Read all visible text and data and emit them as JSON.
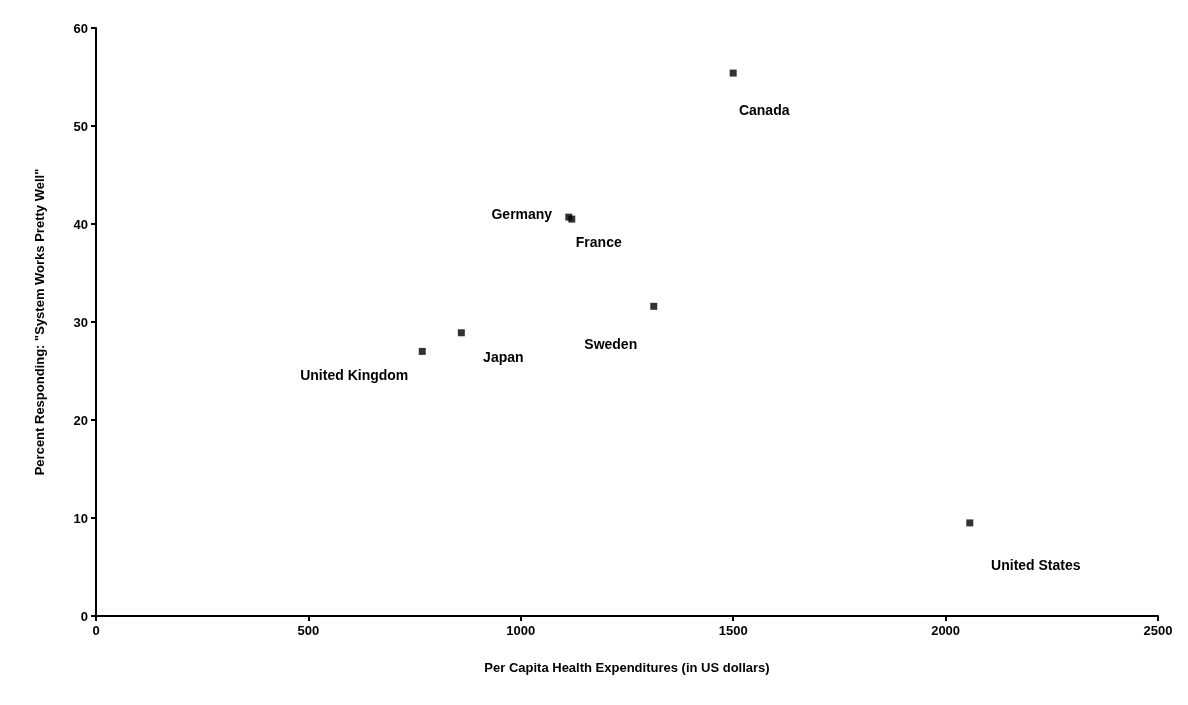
{
  "chart_data": {
    "type": "scatter",
    "xlabel": "Per Capita Health Expenditures (in US dollars)",
    "ylabel": "Percent Responding: \"System Works Pretty Well\"",
    "x": [
      768,
      860,
      1113,
      1120,
      1313,
      1500,
      2057
    ],
    "values": [
      27,
      28.9,
      40.7,
      40.5,
      31.6,
      55.4,
      9.5
    ],
    "color": "#000000",
    "marker": "square",
    "grid": false,
    "xlim": [
      0,
      2500
    ],
    "xticks": [
      0,
      500,
      1000,
      1500,
      2000,
      2500
    ],
    "ylim": [
      0,
      60
    ],
    "yticks": [
      0,
      10,
      20,
      30,
      40,
      50,
      60
    ],
    "annotations": [
      {
        "text": "United Kingdom",
        "x": 768,
        "y": 27
      },
      {
        "text": "Japan",
        "x": 860,
        "y": 28.9
      },
      {
        "text": "Germany",
        "x": 1113,
        "y": 40.7
      },
      {
        "text": "France",
        "x": 1120,
        "y": 40.5
      },
      {
        "text": "Sweden",
        "x": 1313,
        "y": 31.6
      },
      {
        "text": "Canada",
        "x": 1500,
        "y": 55.4
      },
      {
        "text": "United States",
        "x": 2057,
        "y": 9.5
      }
    ]
  }
}
